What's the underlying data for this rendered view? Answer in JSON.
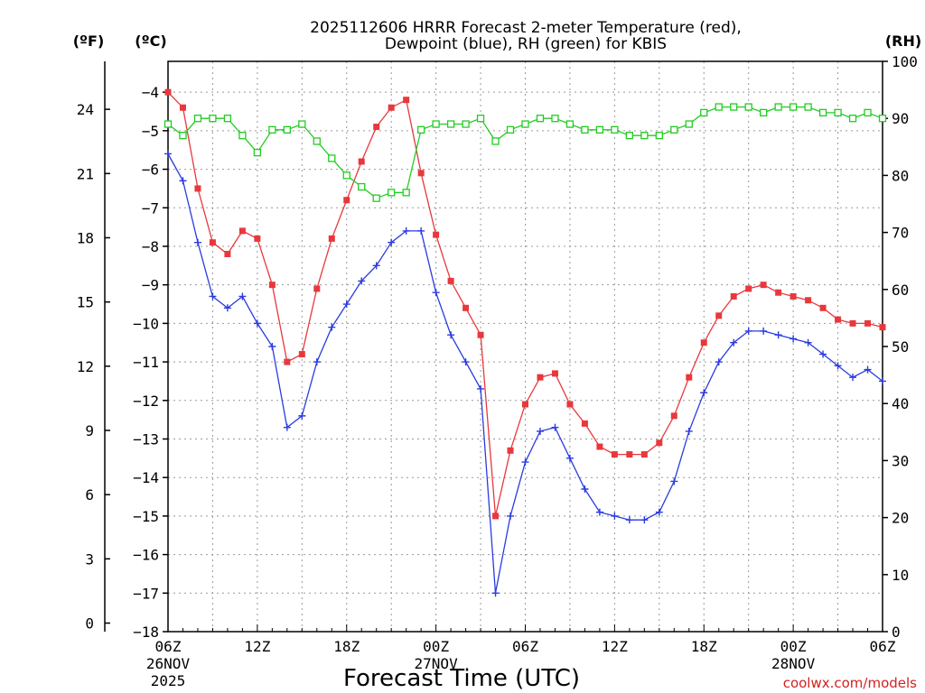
{
  "title_line1": "2025112606 HRRR Forecast 2-meter Temperature (red),",
  "title_line2": "Dewpoint (blue), RH (green) for KBIS",
  "unit_f": "(ºF)",
  "unit_c": "(ºC)",
  "unit_rh": "(RH)",
  "xlabel": "Forecast Time (UTC)",
  "credit": "coolwx.com/models",
  "x_ticks": [
    {
      "hour": 0,
      "label": "06Z",
      "sub1": "26NOV",
      "sub2": "2025"
    },
    {
      "hour": 6,
      "label": "12Z"
    },
    {
      "hour": 12,
      "label": "18Z"
    },
    {
      "hour": 18,
      "label": "00Z",
      "sub1": "27NOV"
    },
    {
      "hour": 24,
      "label": "06Z"
    },
    {
      "hour": 30,
      "label": "12Z"
    },
    {
      "hour": 36,
      "label": "18Z"
    },
    {
      "hour": 42,
      "label": "00Z",
      "sub1": "28NOV"
    },
    {
      "hour": 48,
      "label": "06Z"
    }
  ],
  "colors": {
    "temperature": "#e8383c",
    "dewpoint": "#2a3be0",
    "rh": "#22cc22",
    "grid": "#999999",
    "credit": "#d42020"
  },
  "chart_data": {
    "type": "line",
    "x_unit": "forecast hour from 2025-11-26 06Z",
    "x": [
      0,
      1,
      2,
      3,
      4,
      5,
      6,
      7,
      8,
      9,
      10,
      11,
      12,
      13,
      14,
      15,
      16,
      17,
      18,
      19,
      20,
      21,
      22,
      23,
      24,
      25,
      26,
      27,
      28,
      29,
      30,
      31,
      32,
      33,
      34,
      35,
      36,
      37,
      38,
      39,
      40,
      41,
      42,
      43,
      44,
      45,
      46,
      47,
      48
    ],
    "ylim_c": [
      -18,
      -3.2
    ],
    "ylim_f": [
      0,
      27
    ],
    "ylim_rh": [
      0,
      100
    ],
    "y_ticks_c": [
      -18,
      -17,
      -16,
      -15,
      -14,
      -13,
      -12,
      -11,
      -10,
      -9,
      -8,
      -7,
      -6,
      -5,
      -4
    ],
    "y_ticks_f": [
      0,
      3,
      6,
      9,
      12,
      15,
      18,
      21,
      24
    ],
    "y_ticks_rh": [
      0,
      10,
      20,
      30,
      40,
      50,
      60,
      70,
      80,
      90,
      100
    ],
    "grid": true,
    "series": [
      {
        "name": "Temperature (red)",
        "axis": "C",
        "marker": "filled-square",
        "values": [
          -4.0,
          -4.4,
          -6.5,
          -7.9,
          -8.2,
          -7.6,
          -7.8,
          -9.0,
          -11.0,
          -10.8,
          -9.1,
          -7.8,
          -6.8,
          -5.8,
          -4.9,
          -4.4,
          -4.2,
          -6.1,
          -7.7,
          -8.9,
          -9.6,
          -10.3,
          -15.0,
          -13.3,
          -12.1,
          -11.4,
          -11.3,
          -12.1,
          -12.6,
          -13.2,
          -13.4,
          -13.4,
          -13.4,
          -13.1,
          -12.4,
          -11.4,
          -10.5,
          -9.8,
          -9.3,
          -9.1,
          -9.0,
          -9.2,
          -9.3,
          -9.4,
          -9.6,
          -9.9,
          -10.0,
          -10.0,
          -10.1
        ]
      },
      {
        "name": "Dewpoint (blue)",
        "axis": "C",
        "marker": "plus",
        "values": [
          -5.6,
          -6.3,
          -7.9,
          -9.3,
          -9.6,
          -9.3,
          -10.0,
          -10.6,
          -12.7,
          -12.4,
          -11.0,
          -10.1,
          -9.5,
          -8.9,
          -8.5,
          -7.9,
          -7.6,
          -7.6,
          -9.2,
          -10.3,
          -11.0,
          -11.7,
          -17.0,
          -15.0,
          -13.6,
          -12.8,
          -12.7,
          -13.5,
          -14.3,
          -14.9,
          -15.0,
          -15.1,
          -15.1,
          -14.9,
          -14.1,
          -12.8,
          -11.8,
          -11.0,
          -10.5,
          -10.2,
          -10.2,
          -10.3,
          -10.4,
          -10.5,
          -10.8,
          -11.1,
          -11.4,
          -11.2,
          -11.5
        ]
      },
      {
        "name": "RH (green)",
        "axis": "RH",
        "marker": "open-square",
        "values": [
          89,
          87,
          90,
          90,
          90,
          87,
          84,
          88,
          88,
          89,
          86,
          83,
          80,
          78,
          76,
          77,
          77,
          88,
          89,
          89,
          89,
          90,
          86,
          88,
          89,
          90,
          90,
          89,
          88,
          88,
          88,
          87,
          87,
          87,
          88,
          89,
          91,
          92,
          92,
          92,
          91,
          92,
          92,
          92,
          91,
          91,
          90,
          91,
          90
        ]
      }
    ]
  }
}
